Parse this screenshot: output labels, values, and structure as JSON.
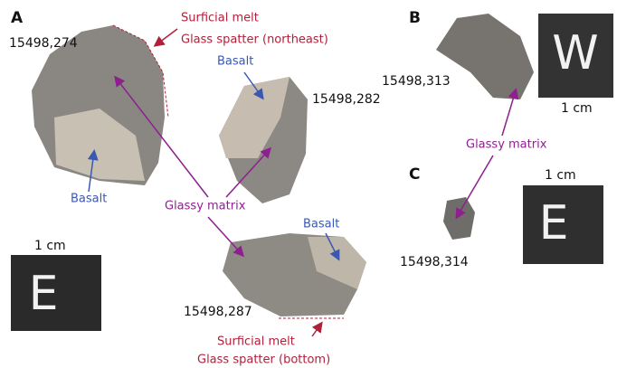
{
  "panels": {
    "a": "A",
    "b": "B",
    "c": "C"
  },
  "samples": {
    "s274": "15498,274",
    "s282": "15498,282",
    "s287": "15498,287",
    "s313": "15498,313",
    "s314": "15498,314"
  },
  "annotations": {
    "melt_ne": [
      "Surficial melt",
      "Glass spatter (northeast)"
    ],
    "melt_bottom": [
      "Surficial melt",
      "Glass spatter (bottom)"
    ],
    "basalt_274": "Basalt",
    "basalt_282": "Basalt",
    "basalt_287": "Basalt",
    "glassy_a": "Glassy matrix",
    "glassy_bc": "Glassy matrix"
  },
  "scales": {
    "a": "1 cm",
    "b": "1 cm",
    "c": "1 cm"
  },
  "cubes": {
    "a": "E",
    "b": "W",
    "c": "E"
  }
}
